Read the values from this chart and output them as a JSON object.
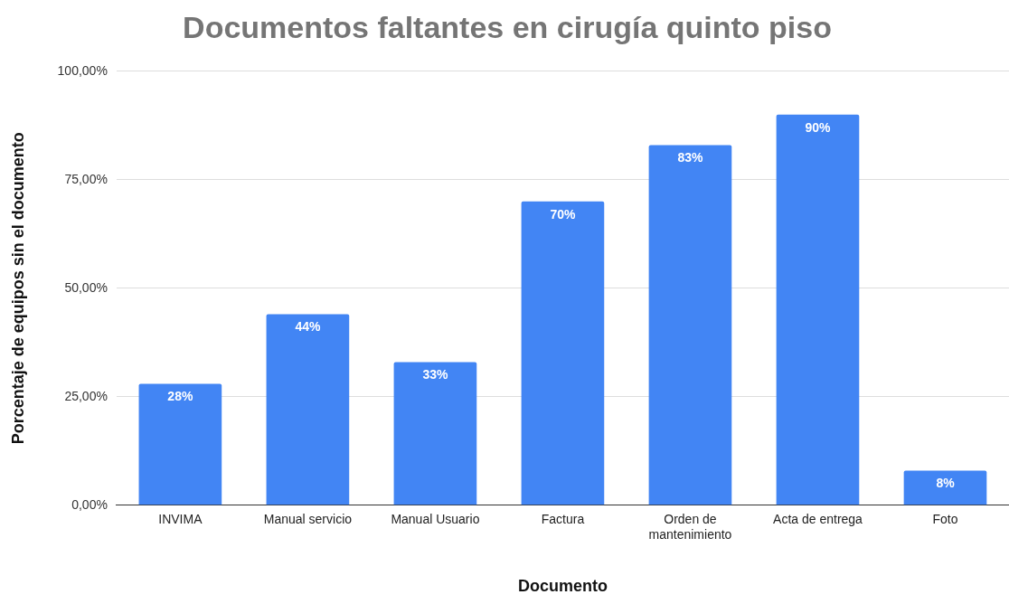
{
  "chart_data": {
    "type": "bar",
    "title": "Documentos faltantes en cirugía quinto piso",
    "xlabel": "Documento",
    "ylabel": "Porcentaje de equipos sin el documento",
    "categories": [
      "INVIMA",
      "Manual servicio",
      "Manual Usuario",
      "Factura",
      "Orden de mantenimiento",
      "Acta de entrega",
      "Foto"
    ],
    "values": [
      28,
      44,
      33,
      70,
      83,
      90,
      8
    ],
    "value_labels": [
      "28%",
      "44%",
      "33%",
      "70%",
      "83%",
      "90%",
      "8%"
    ],
    "color": "#4285f4",
    "ylim": [
      0,
      100
    ],
    "yticks": [
      {
        "value": 0,
        "label": "0,00%"
      },
      {
        "value": 25,
        "label": "25,00%"
      },
      {
        "value": 50,
        "label": "50,00%"
      },
      {
        "value": 75,
        "label": "75,00%"
      },
      {
        "value": 100,
        "label": "100,00%"
      }
    ],
    "grid": "y",
    "legend": false
  }
}
